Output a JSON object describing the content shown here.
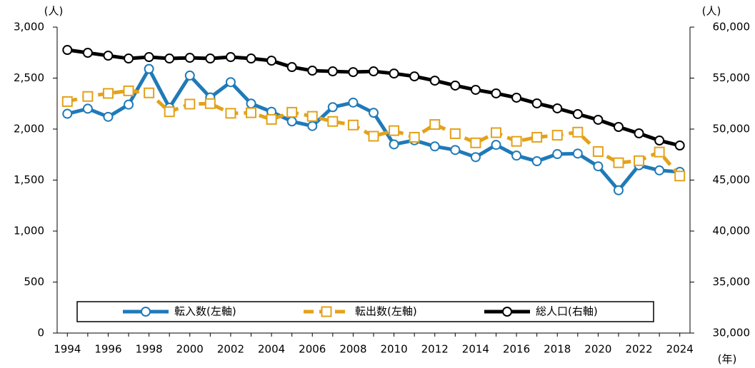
{
  "chart_data": {
    "type": "line",
    "x": [
      "1994",
      null,
      "1996",
      null,
      "1998",
      null,
      "2000",
      null,
      "2002",
      null,
      "2004",
      null,
      "2006",
      null,
      "2008",
      null,
      "2010",
      null,
      "2012",
      null,
      "2014",
      null,
      "2016",
      null,
      "2018",
      null,
      "2020",
      null,
      "2022",
      null,
      "2024"
    ],
    "y_label": "(人)",
    "y2_label": "(人)",
    "x_label": "(年)",
    "ylim": [
      0,
      3000
    ],
    "yticks": [
      0,
      {
        "value": 500,
        "label": "500"
      },
      {
        "value": 1000,
        "label": "1,000"
      },
      {
        "value": 1500,
        "label": "1,500"
      },
      {
        "value": 2000,
        "label": "2,000"
      },
      {
        "value": 2500,
        "label": "2,500"
      },
      {
        "value": 3000,
        "label": "3,000"
      }
    ],
    "y2lim": [
      30000,
      60000
    ],
    "y2ticks": [
      {
        "value": 30000,
        "label": "30,000"
      },
      {
        "value": 35000,
        "label": "35,000"
      },
      {
        "value": 40000,
        "label": "40,000"
      },
      {
        "value": 45000,
        "label": "45,000"
      },
      {
        "value": 50000,
        "label": "50,000"
      },
      {
        "value": 55000,
        "label": "55,000"
      },
      {
        "value": 60000,
        "label": "60,000"
      }
    ],
    "legend": "lower center",
    "series": [
      {
        "name": "転入数(左軸)",
        "color": "#1f7ab8",
        "marker": "circle",
        "dash": false,
        "values": [
          2150,
          2200,
          2120,
          2240,
          2590,
          2210,
          2525,
          2310,
          2460,
          2250,
          2170,
          2075,
          2030,
          2215,
          2260,
          2160,
          1850,
          1890,
          1830,
          1795,
          1725,
          1845,
          1740,
          1685,
          1755,
          1760,
          1635,
          1400,
          1645,
          1595,
          1580
        ]
      },
      {
        "name": "転出数(左軸)",
        "color": "#e3a21a",
        "marker": "square",
        "dash": true,
        "values": [
          2270,
          2320,
          2350,
          2375,
          2355,
          2170,
          2245,
          2250,
          2155,
          2160,
          2095,
          2165,
          2125,
          2075,
          2040,
          1930,
          1985,
          1920,
          2045,
          1955,
          1865,
          1965,
          1880,
          1920,
          1940,
          1970,
          1780,
          1670,
          1690,
          1775,
          1540
        ]
      },
      {
        "name": "総人口(右軸)",
        "color": "#000000",
        "marker": "circle",
        "dash": false,
        "axis": "y2",
        "values": [
          57760,
          57480,
          57200,
          56920,
          57060,
          56920,
          56990,
          56920,
          57060,
          56920,
          56710,
          56080,
          55730,
          55660,
          55590,
          55660,
          55450,
          55170,
          54750,
          54270,
          53850,
          53500,
          53080,
          52520,
          52030,
          51470,
          50910,
          50210,
          49580,
          48880,
          48390
        ]
      }
    ]
  }
}
